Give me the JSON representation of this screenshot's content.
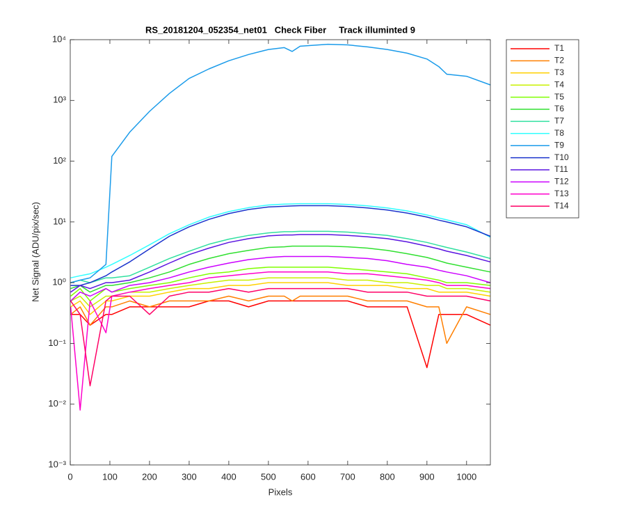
{
  "chart_data": {
    "type": "line",
    "title": "RS_20181204_052354_net01   Check Fiber     Track illuminted 9",
    "x_label": "Pixels",
    "y_label": "Net Signal (ADU/pix/sec)",
    "log_y": true,
    "legend": "outside-right",
    "xlim": [
      0,
      1060
    ],
    "xticks": [
      0,
      100,
      200,
      300,
      400,
      500,
      600,
      700,
      800,
      900,
      1000
    ],
    "ylim": [
      0.001,
      10000
    ],
    "yticks": [
      {
        "value": 0.001,
        "label": "10⁻³"
      },
      {
        "value": 0.01,
        "label": "10⁻²"
      },
      {
        "value": 0.1,
        "label": "10⁻¹"
      },
      {
        "value": 1,
        "label": "10⁰"
      },
      {
        "value": 10,
        "label": "10¹"
      },
      {
        "value": 100,
        "label": "10²"
      },
      {
        "value": 1000,
        "label": "10³"
      },
      {
        "value": 10000,
        "label": "10⁴"
      }
    ],
    "x": [
      1,
      25,
      50,
      90,
      105,
      150,
      200,
      250,
      300,
      350,
      400,
      450,
      500,
      540,
      560,
      580,
      650,
      700,
      750,
      800,
      850,
      900,
      930,
      950,
      1000,
      1060
    ],
    "series": [
      {
        "name": "T1",
        "color": "#ff0000",
        "values": [
          0.3,
          0.3,
          0.2,
          0.3,
          0.3,
          0.4,
          0.4,
          0.4,
          0.4,
          0.5,
          0.5,
          0.4,
          0.5,
          0.5,
          0.5,
          0.5,
          0.5,
          0.5,
          0.4,
          0.4,
          0.4,
          0.04,
          0.3,
          0.3,
          0.3,
          0.2
        ]
      },
      {
        "name": "T2",
        "color": "#ff7f00",
        "values": [
          0.3,
          0.4,
          0.2,
          0.4,
          0.4,
          0.5,
          0.4,
          0.5,
          0.5,
          0.5,
          0.6,
          0.5,
          0.6,
          0.6,
          0.5,
          0.6,
          0.6,
          0.6,
          0.5,
          0.5,
          0.5,
          0.4,
          0.4,
          0.1,
          0.4,
          0.3
        ]
      },
      {
        "name": "T3",
        "color": "#ffd000",
        "values": [
          0.4,
          0.5,
          0.3,
          0.5,
          0.5,
          0.6,
          0.6,
          0.7,
          0.8,
          0.8,
          0.9,
          0.9,
          1,
          1,
          1,
          1,
          1,
          0.9,
          0.9,
          0.9,
          0.8,
          0.8,
          0.7,
          0.7,
          0.7,
          0.6
        ]
      },
      {
        "name": "T4",
        "color": "#c8f000",
        "values": [
          0.5,
          0.6,
          0.4,
          0.6,
          0.6,
          0.7,
          0.7,
          0.8,
          0.9,
          1,
          1.1,
          1.1,
          1.2,
          1.2,
          1.2,
          1.2,
          1.2,
          1.1,
          1.1,
          1,
          1,
          0.9,
          0.9,
          0.8,
          0.8,
          0.7
        ]
      },
      {
        "name": "T5",
        "color": "#80ff00",
        "values": [
          0.6,
          0.8,
          0.5,
          0.8,
          0.7,
          0.8,
          0.9,
          1,
          1.2,
          1.4,
          1.5,
          1.7,
          1.8,
          1.8,
          1.8,
          1.8,
          1.8,
          1.7,
          1.6,
          1.5,
          1.4,
          1.2,
          1.1,
          1,
          1,
          0.9
        ]
      },
      {
        "name": "T6",
        "color": "#30e030",
        "values": [
          0.8,
          0.9,
          0.7,
          0.9,
          0.9,
          1,
          1.2,
          1.5,
          2,
          2.5,
          3,
          3.4,
          3.8,
          3.9,
          4,
          4,
          4,
          3.9,
          3.7,
          3.4,
          3,
          2.6,
          2.3,
          2.1,
          1.8,
          1.5
        ]
      },
      {
        "name": "T7",
        "color": "#30e0a0",
        "values": [
          1,
          1.1,
          1,
          1.2,
          1.2,
          1.3,
          1.8,
          2.5,
          3.3,
          4.3,
          5.2,
          6,
          6.6,
          6.9,
          6.9,
          7,
          7,
          6.8,
          6.4,
          6,
          5.3,
          4.6,
          4.1,
          3.8,
          3.2,
          2.5
        ]
      },
      {
        "name": "T8",
        "color": "#30ffff",
        "values": [
          1.2,
          1.3,
          1.4,
          1.8,
          2,
          2.8,
          4.2,
          6.4,
          9,
          12,
          14.8,
          17.2,
          19,
          19.6,
          19.8,
          20,
          20,
          19.4,
          18.4,
          17,
          15.2,
          13,
          11.6,
          10.8,
          9,
          5.6
        ]
      },
      {
        "name": "T9",
        "color": "#1a9bea",
        "values": [
          1,
          1.1,
          1.2,
          2,
          120,
          300,
          660,
          1300,
          2300,
          3300,
          4500,
          5700,
          6900,
          7400,
          6400,
          7800,
          8400,
          8200,
          7600,
          6900,
          6000,
          4800,
          3600,
          2700,
          2500,
          1800
        ]
      },
      {
        "name": "T10",
        "color": "#1a33cc",
        "values": [
          0.9,
          0.9,
          1,
          1.3,
          1.5,
          2.2,
          3.6,
          5.8,
          8.3,
          11,
          13.7,
          16,
          17.6,
          18.1,
          18.3,
          18.5,
          18.5,
          18,
          17,
          15.7,
          14,
          12,
          10.7,
          10,
          8.3,
          5.8
        ]
      },
      {
        "name": "T11",
        "color": "#5a14e0",
        "values": [
          0.7,
          0.9,
          0.8,
          1,
          1,
          1.1,
          1.5,
          2.1,
          2.9,
          3.7,
          4.6,
          5.3,
          5.9,
          6.1,
          6.1,
          6.2,
          6.2,
          6,
          5.7,
          5.3,
          4.7,
          4,
          3.6,
          3.3,
          2.8,
          2.2
        ]
      },
      {
        "name": "T12",
        "color": "#cc00ff",
        "values": [
          0.5,
          0.7,
          0.6,
          0.8,
          0.7,
          0.9,
          1,
          1.2,
          1.5,
          1.8,
          2.1,
          2.4,
          2.6,
          2.7,
          2.7,
          2.7,
          2.7,
          2.6,
          2.5,
          2.3,
          2,
          1.8,
          1.6,
          1.5,
          1.3,
          1
        ]
      },
      {
        "name": "T13",
        "color": "#ff00cc",
        "values": [
          0.4,
          0.008,
          0.5,
          0.15,
          0.6,
          0.7,
          0.8,
          0.9,
          1,
          1.2,
          1.3,
          1.4,
          1.5,
          1.5,
          1.5,
          1.5,
          1.5,
          1.4,
          1.4,
          1.3,
          1.2,
          1.1,
          1,
          0.9,
          0.9,
          0.8
        ]
      },
      {
        "name": "T14",
        "color": "#ff0066",
        "values": [
          0.5,
          0.3,
          0.02,
          0.5,
          0.6,
          0.6,
          0.3,
          0.6,
          0.7,
          0.7,
          0.8,
          0.7,
          0.8,
          0.8,
          0.8,
          0.8,
          0.8,
          0.8,
          0.7,
          0.7,
          0.7,
          0.6,
          0.6,
          0.6,
          0.6,
          0.5
        ]
      }
    ]
  }
}
